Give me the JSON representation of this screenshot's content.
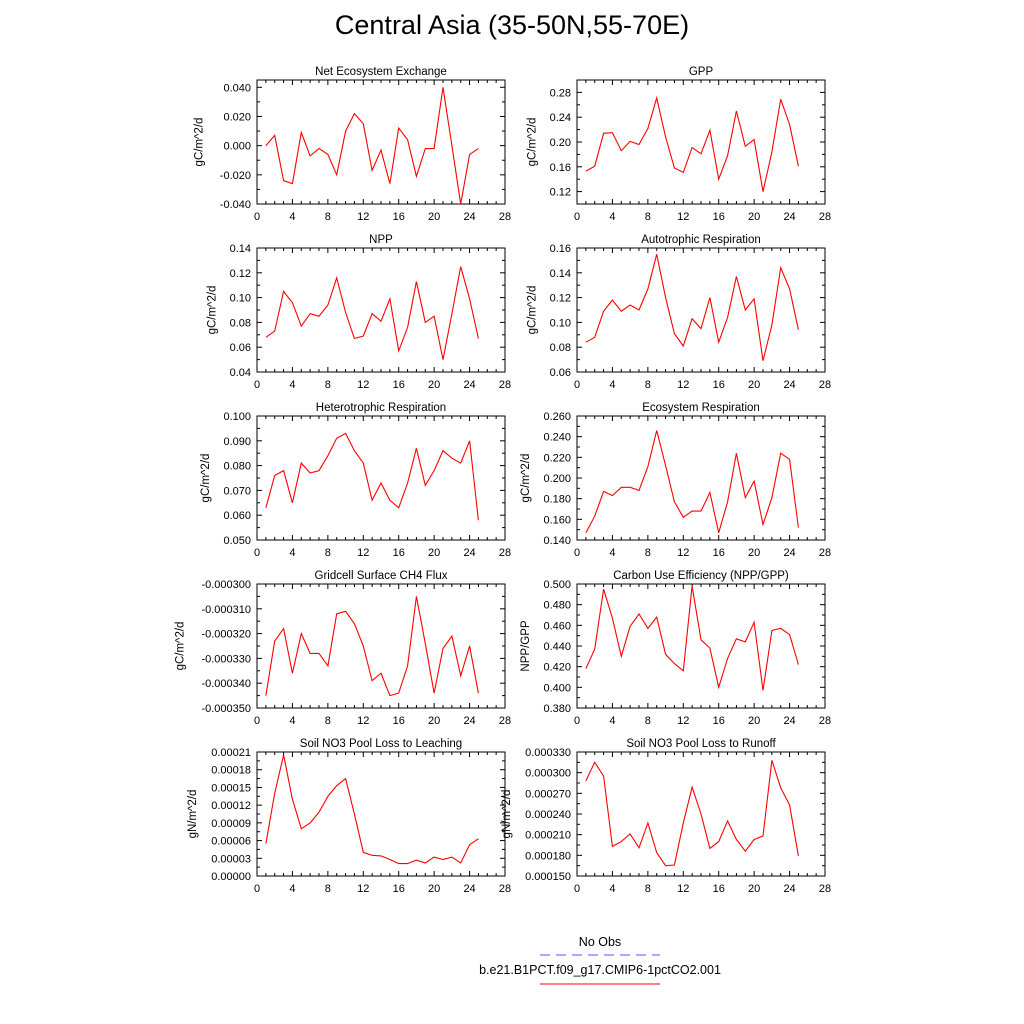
{
  "title": "Central Asia (35-50N,55-70E)",
  "series_color": "#ff0000",
  "legend": {
    "items": [
      {
        "label": "No Obs",
        "color": "#5555ff",
        "dash": true
      },
      {
        "label": "b.e21.B1PCT.f09_g17.CMIP6-1pctCO2.001",
        "color": "#ff0000",
        "dash": false
      }
    ]
  },
  "chart_data": [
    {
      "type": "line",
      "title": "Net Ecosystem Exchange",
      "ylabel": "gC/m^2/d",
      "xlim": [
        0,
        28
      ],
      "xticks": [
        "0",
        "4",
        "8",
        "12",
        "16",
        "20",
        "24",
        "28"
      ],
      "ylim": [
        -0.04,
        0.045
      ],
      "yticks": [
        "-0.040",
        "-0.020",
        "0.000",
        "0.020",
        "0.040"
      ],
      "ytick_values": [
        -0.04,
        -0.02,
        0,
        0.02,
        0.04
      ],
      "x": [
        1,
        2,
        3,
        4,
        5,
        6,
        7,
        8,
        9,
        10,
        11,
        12,
        13,
        14,
        15,
        16,
        17,
        18,
        19,
        20,
        21,
        22,
        23,
        24,
        25
      ],
      "values": [
        0.0,
        0.007,
        -0.024,
        -0.026,
        0.009,
        -0.007,
        -0.002,
        -0.006,
        -0.02,
        0.01,
        0.022,
        0.015,
        -0.017,
        -0.003,
        -0.026,
        0.012,
        0.004,
        -0.021,
        -0.002,
        -0.002,
        0.04,
        0.0,
        -0.04,
        -0.006,
        -0.002
      ]
    },
    {
      "type": "line",
      "title": "GPP",
      "ylabel": "gC/m^2/d",
      "xlim": [
        0,
        28
      ],
      "xticks": [
        "0",
        "4",
        "8",
        "12",
        "16",
        "20",
        "24",
        "28"
      ],
      "ylim": [
        0.1,
        0.3
      ],
      "yticks": [
        "0.12",
        "0.16",
        "0.20",
        "0.24",
        "0.28"
      ],
      "ytick_values": [
        0.12,
        0.16,
        0.2,
        0.24,
        0.28
      ],
      "x": [
        1,
        2,
        3,
        4,
        5,
        6,
        7,
        8,
        9,
        10,
        11,
        12,
        13,
        14,
        15,
        16,
        17,
        18,
        19,
        20,
        21,
        22,
        23,
        24,
        25
      ],
      "values": [
        0.153,
        0.161,
        0.214,
        0.215,
        0.186,
        0.201,
        0.196,
        0.222,
        0.271,
        0.208,
        0.158,
        0.151,
        0.191,
        0.181,
        0.219,
        0.14,
        0.178,
        0.25,
        0.193,
        0.204,
        0.12,
        0.184,
        0.269,
        0.228,
        0.161
      ]
    },
    {
      "type": "line",
      "title": "NPP",
      "ylabel": "gC/m^2/d",
      "xlim": [
        0,
        28
      ],
      "xticks": [
        "0",
        "4",
        "8",
        "12",
        "16",
        "20",
        "24",
        "28"
      ],
      "ylim": [
        0.04,
        0.14
      ],
      "yticks": [
        "0.04",
        "0.06",
        "0.08",
        "0.10",
        "0.12",
        "0.14"
      ],
      "ytick_values": [
        0.04,
        0.06,
        0.08,
        0.1,
        0.12,
        0.14
      ],
      "x": [
        1,
        2,
        3,
        4,
        5,
        6,
        7,
        8,
        9,
        10,
        11,
        12,
        13,
        14,
        15,
        16,
        17,
        18,
        19,
        20,
        21,
        22,
        23,
        24,
        25
      ],
      "values": [
        0.068,
        0.073,
        0.105,
        0.096,
        0.077,
        0.087,
        0.085,
        0.094,
        0.116,
        0.088,
        0.067,
        0.069,
        0.087,
        0.081,
        0.099,
        0.057,
        0.076,
        0.113,
        0.08,
        0.085,
        0.05,
        0.087,
        0.125,
        0.099,
        0.067
      ]
    },
    {
      "type": "line",
      "title": "Autotrophic Respiration",
      "ylabel": "gC/m^2/d",
      "xlim": [
        0,
        28
      ],
      "xticks": [
        "0",
        "4",
        "8",
        "12",
        "16",
        "20",
        "24",
        "28"
      ],
      "ylim": [
        0.06,
        0.16
      ],
      "yticks": [
        "0.06",
        "0.08",
        "0.10",
        "0.12",
        "0.14",
        "0.16"
      ],
      "ytick_values": [
        0.06,
        0.08,
        0.1,
        0.12,
        0.14,
        0.16
      ],
      "x": [
        1,
        2,
        3,
        4,
        5,
        6,
        7,
        8,
        9,
        10,
        11,
        12,
        13,
        14,
        15,
        16,
        17,
        18,
        19,
        20,
        21,
        22,
        23,
        24,
        25
      ],
      "values": [
        0.084,
        0.088,
        0.109,
        0.118,
        0.109,
        0.114,
        0.11,
        0.127,
        0.155,
        0.12,
        0.091,
        0.081,
        0.103,
        0.095,
        0.12,
        0.084,
        0.104,
        0.137,
        0.11,
        0.119,
        0.069,
        0.098,
        0.144,
        0.127,
        0.094
      ]
    },
    {
      "type": "line",
      "title": "Heterotrophic Respiration",
      "ylabel": "gC/m^2/d",
      "xlim": [
        0,
        28
      ],
      "xticks": [
        "0",
        "4",
        "8",
        "12",
        "16",
        "20",
        "24",
        "28"
      ],
      "ylim": [
        0.05,
        0.1
      ],
      "yticks": [
        "0.050",
        "0.060",
        "0.070",
        "0.080",
        "0.090",
        "0.100"
      ],
      "ytick_values": [
        0.05,
        0.06,
        0.07,
        0.08,
        0.09,
        0.1
      ],
      "x": [
        1,
        2,
        3,
        4,
        5,
        6,
        7,
        8,
        9,
        10,
        11,
        12,
        13,
        14,
        15,
        16,
        17,
        18,
        19,
        20,
        21,
        22,
        23,
        24,
        25
      ],
      "values": [
        0.063,
        0.076,
        0.078,
        0.065,
        0.081,
        0.077,
        0.078,
        0.084,
        0.091,
        0.093,
        0.086,
        0.081,
        0.066,
        0.073,
        0.066,
        0.063,
        0.073,
        0.087,
        0.072,
        0.078,
        0.086,
        0.083,
        0.081,
        0.09,
        0.058
      ]
    },
    {
      "type": "line",
      "title": "Ecosystem Respiration",
      "ylabel": "gC/m^2/d",
      "xlim": [
        0,
        28
      ],
      "xticks": [
        "0",
        "4",
        "8",
        "12",
        "16",
        "20",
        "24",
        "28"
      ],
      "ylim": [
        0.14,
        0.26
      ],
      "yticks": [
        "0.140",
        "0.160",
        "0.180",
        "0.200",
        "0.220",
        "0.240",
        "0.260"
      ],
      "ytick_values": [
        0.14,
        0.16,
        0.18,
        0.2,
        0.22,
        0.24,
        0.26
      ],
      "x": [
        1,
        2,
        3,
        4,
        5,
        6,
        7,
        8,
        9,
        10,
        11,
        12,
        13,
        14,
        15,
        16,
        17,
        18,
        19,
        20,
        21,
        22,
        23,
        24,
        25
      ],
      "values": [
        0.147,
        0.163,
        0.187,
        0.183,
        0.191,
        0.191,
        0.188,
        0.211,
        0.246,
        0.212,
        0.177,
        0.162,
        0.168,
        0.168,
        0.186,
        0.147,
        0.177,
        0.224,
        0.181,
        0.197,
        0.155,
        0.181,
        0.224,
        0.218,
        0.152
      ]
    },
    {
      "type": "line",
      "title": "Gridcell Surface CH4 Flux",
      "ylabel": "gC/m^2/d",
      "xlim": [
        0,
        28
      ],
      "xticks": [
        "0",
        "4",
        "8",
        "12",
        "16",
        "20",
        "24",
        "28"
      ],
      "ylim": [
        -0.00035,
        -0.0003
      ],
      "yticks": [
        "-0.000350",
        "-0.000340",
        "-0.000330",
        "-0.000320",
        "-0.000310",
        "-0.000300"
      ],
      "ytick_values": [
        -0.00035,
        -0.00034,
        -0.00033,
        -0.00032,
        -0.00031,
        -0.0003
      ],
      "x": [
        1,
        2,
        3,
        4,
        5,
        6,
        7,
        8,
        9,
        10,
        11,
        12,
        13,
        14,
        15,
        16,
        17,
        18,
        19,
        20,
        21,
        22,
        23,
        24,
        25
      ],
      "values": [
        -0.000345,
        -0.000323,
        -0.000318,
        -0.000336,
        -0.00032,
        -0.000328,
        -0.000328,
        -0.000333,
        -0.000312,
        -0.000311,
        -0.000316,
        -0.000325,
        -0.000339,
        -0.000336,
        -0.000345,
        -0.000344,
        -0.000333,
        -0.000305,
        -0.000324,
        -0.000344,
        -0.000326,
        -0.000321,
        -0.000337,
        -0.000325,
        -0.000344
      ]
    },
    {
      "type": "line",
      "title": "Carbon Use Efficiency (NPP/GPP)",
      "ylabel": "NPP/GPP",
      "xlim": [
        0,
        28
      ],
      "xticks": [
        "0",
        "4",
        "8",
        "12",
        "16",
        "20",
        "24",
        "28"
      ],
      "ylim": [
        0.38,
        0.5
      ],
      "yticks": [
        "0.380",
        "0.400",
        "0.420",
        "0.440",
        "0.460",
        "0.480",
        "0.500"
      ],
      "ytick_values": [
        0.38,
        0.4,
        0.42,
        0.44,
        0.46,
        0.48,
        0.5
      ],
      "x": [
        1,
        2,
        3,
        4,
        5,
        6,
        7,
        8,
        9,
        10,
        11,
        12,
        13,
        14,
        15,
        16,
        17,
        18,
        19,
        20,
        21,
        22,
        23,
        24,
        25
      ],
      "values": [
        0.418,
        0.437,
        0.495,
        0.467,
        0.43,
        0.459,
        0.471,
        0.457,
        0.468,
        0.432,
        0.423,
        0.416,
        0.498,
        0.446,
        0.438,
        0.4,
        0.428,
        0.447,
        0.444,
        0.463,
        0.397,
        0.455,
        0.457,
        0.451,
        0.422
      ]
    },
    {
      "type": "line",
      "title": "Soil NO3 Pool Loss to Leaching",
      "ylabel": "gN/m^2/d",
      "xlim": [
        0,
        28
      ],
      "xticks": [
        "0",
        "4",
        "8",
        "12",
        "16",
        "20",
        "24",
        "28"
      ],
      "ylim": [
        0,
        0.00021
      ],
      "yticks": [
        "0.00000",
        "0.00003",
        "0.00006",
        "0.00009",
        "0.00012",
        "0.00015",
        "0.00018",
        "0.00021"
      ],
      "ytick_values": [
        0,
        3e-05,
        6e-05,
        9e-05,
        0.00012,
        0.00015,
        0.00018,
        0.00021
      ],
      "x": [
        1,
        2,
        3,
        4,
        5,
        6,
        7,
        8,
        9,
        10,
        11,
        12,
        13,
        14,
        15,
        16,
        17,
        18,
        19,
        20,
        21,
        22,
        23,
        24,
        25
      ],
      "values": [
        5.5e-05,
        0.00014,
        0.000205,
        0.00013,
        8e-05,
        9e-05,
        0.000108,
        0.000135,
        0.000153,
        0.000165,
        0.000105,
        4e-05,
        3.5e-05,
        3.4e-05,
        2.8e-05,
        2.1e-05,
        2.1e-05,
        2.7e-05,
        2.2e-05,
        3.2e-05,
        2.8e-05,
        3.2e-05,
        2.2e-05,
        5.3e-05,
        6.3e-05
      ]
    },
    {
      "type": "line",
      "title": "Soil NO3 Pool Loss to Runoff",
      "ylabel": "gN/m^2/d",
      "xlim": [
        0,
        28
      ],
      "xticks": [
        "0",
        "4",
        "8",
        "12",
        "16",
        "20",
        "24",
        "28"
      ],
      "ylim": [
        0.00015,
        0.00033
      ],
      "yticks": [
        "0.000150",
        "0.000180",
        "0.000210",
        "0.000240",
        "0.000270",
        "0.000300",
        "0.000330"
      ],
      "ytick_values": [
        0.00015,
        0.00018,
        0.00021,
        0.00024,
        0.00027,
        0.0003,
        0.00033
      ],
      "x": [
        1,
        2,
        3,
        4,
        5,
        6,
        7,
        8,
        9,
        10,
        11,
        12,
        13,
        14,
        15,
        16,
        17,
        18,
        19,
        20,
        21,
        22,
        23,
        24,
        25
      ],
      "values": [
        0.000288,
        0.000315,
        0.000295,
        0.000193,
        0.0002,
        0.000211,
        0.000191,
        0.000227,
        0.000184,
        0.000165,
        0.000166,
        0.000227,
        0.000279,
        0.00024,
        0.00019,
        0.0002,
        0.00023,
        0.000203,
        0.000186,
        0.000203,
        0.000208,
        0.000318,
        0.000278,
        0.000253,
        0.000179
      ]
    }
  ]
}
